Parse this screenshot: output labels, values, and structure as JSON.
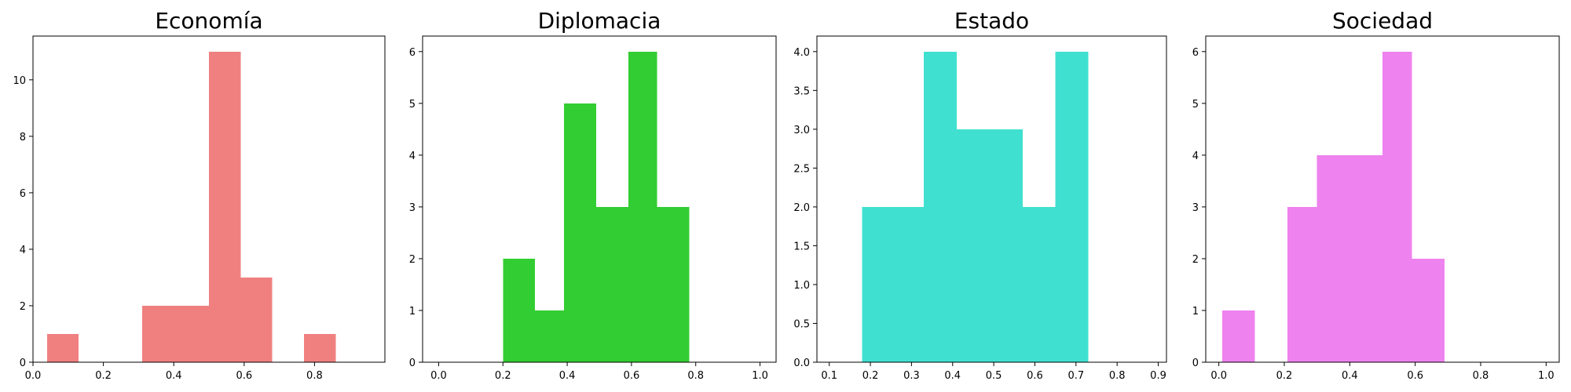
{
  "chart_data": [
    {
      "type": "bar",
      "title": "Economía",
      "color": "#F08080",
      "xlim": [
        0.0,
        1.0
      ],
      "ylim": [
        0,
        11.55
      ],
      "xticks": [
        "0.0",
        "0.2",
        "0.4",
        "0.6",
        "0.8"
      ],
      "yticks": [
        "0",
        "2",
        "4",
        "6",
        "8",
        "10"
      ],
      "bins": [
        {
          "x0": 0.04,
          "x1": 0.13,
          "value": 1
        },
        {
          "x0": 0.13,
          "x1": 0.22,
          "value": 0
        },
        {
          "x0": 0.22,
          "x1": 0.31,
          "value": 0
        },
        {
          "x0": 0.31,
          "x1": 0.4,
          "value": 2
        },
        {
          "x0": 0.4,
          "x1": 0.5,
          "value": 2
        },
        {
          "x0": 0.5,
          "x1": 0.59,
          "value": 11
        },
        {
          "x0": 0.59,
          "x1": 0.68,
          "value": 3
        },
        {
          "x0": 0.68,
          "x1": 0.77,
          "value": 0
        },
        {
          "x0": 0.77,
          "x1": 0.86,
          "value": 1
        }
      ]
    },
    {
      "type": "bar",
      "title": "Diplomacia",
      "color": "#32CD32",
      "xlim": [
        -0.05,
        1.05
      ],
      "ylim": [
        0,
        6.3
      ],
      "xticks": [
        "0.0",
        "0.2",
        "0.4",
        "0.6",
        "0.8",
        "1.0"
      ],
      "yticks": [
        "0",
        "1",
        "2",
        "3",
        "4",
        "5",
        "6"
      ],
      "bins": [
        {
          "x0": 0.2,
          "x1": 0.3,
          "value": 2
        },
        {
          "x0": 0.3,
          "x1": 0.39,
          "value": 1
        },
        {
          "x0": 0.39,
          "x1": 0.49,
          "value": 5
        },
        {
          "x0": 0.49,
          "x1": 0.59,
          "value": 3
        },
        {
          "x0": 0.59,
          "x1": 0.68,
          "value": 6
        },
        {
          "x0": 0.68,
          "x1": 0.78,
          "value": 3
        }
      ]
    },
    {
      "type": "bar",
      "title": "Estado",
      "color": "#40E0D0",
      "xlim": [
        0.07,
        0.92
      ],
      "ylim": [
        0,
        4.2
      ],
      "xticks": [
        "0.1",
        "0.2",
        "0.3",
        "0.4",
        "0.5",
        "0.6",
        "0.7",
        "0.8",
        "0.9"
      ],
      "yticks": [
        "0.0",
        "0.5",
        "1.0",
        "1.5",
        "2.0",
        "2.5",
        "3.0",
        "3.5",
        "4.0"
      ],
      "bins": [
        {
          "x0": 0.18,
          "x1": 0.26,
          "value": 2
        },
        {
          "x0": 0.26,
          "x1": 0.33,
          "value": 2
        },
        {
          "x0": 0.33,
          "x1": 0.41,
          "value": 4
        },
        {
          "x0": 0.41,
          "x1": 0.49,
          "value": 3
        },
        {
          "x0": 0.49,
          "x1": 0.57,
          "value": 3
        },
        {
          "x0": 0.57,
          "x1": 0.65,
          "value": 2
        },
        {
          "x0": 0.65,
          "x1": 0.73,
          "value": 4
        }
      ]
    },
    {
      "type": "bar",
      "title": "Sociedad",
      "color": "#EE82EE",
      "xlim": [
        -0.04,
        1.04
      ],
      "ylim": [
        0,
        6.3
      ],
      "xticks": [
        "0.0",
        "0.2",
        "0.4",
        "0.6",
        "0.8",
        "1.0"
      ],
      "yticks": [
        "0",
        "1",
        "2",
        "3",
        "4",
        "5",
        "6"
      ],
      "bins": [
        {
          "x0": 0.01,
          "x1": 0.11,
          "value": 1
        },
        {
          "x0": 0.11,
          "x1": 0.21,
          "value": 0
        },
        {
          "x0": 0.21,
          "x1": 0.3,
          "value": 3
        },
        {
          "x0": 0.3,
          "x1": 0.4,
          "value": 4
        },
        {
          "x0": 0.4,
          "x1": 0.5,
          "value": 4
        },
        {
          "x0": 0.5,
          "x1": 0.59,
          "value": 6
        },
        {
          "x0": 0.59,
          "x1": 0.69,
          "value": 2
        }
      ]
    }
  ]
}
